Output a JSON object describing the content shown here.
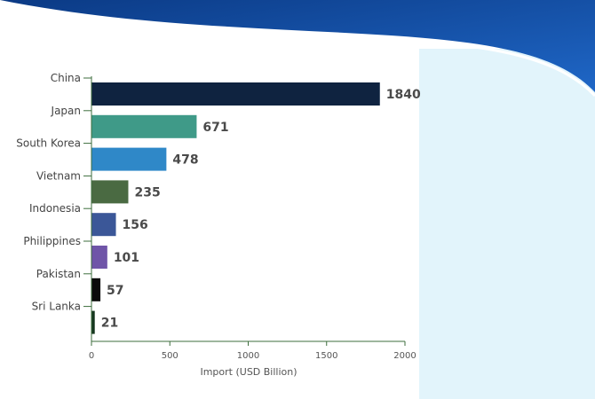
{
  "chart_data": {
    "type": "bar",
    "orientation": "horizontal",
    "categories": [
      "China",
      "Japan",
      "South Korea",
      "Vietnam",
      "Indonesia",
      "Philippines",
      "Pakistan",
      "Sri Lanka"
    ],
    "values": [
      1840,
      671,
      478,
      235,
      156,
      101,
      57,
      21
    ],
    "value_labels": [
      "1840",
      "671",
      "478",
      "235",
      "156",
      "101",
      "57",
      "21"
    ],
    "colors": [
      "#0f2340",
      "#3f9a88",
      "#2f88c8",
      "#4a6a42",
      "#3b5798",
      "#6f55a8",
      "#0a0a0a",
      "#15361f"
    ],
    "xlabel": "Import (USD Billion)",
    "ylabel": "",
    "xlim": [
      0,
      2000
    ],
    "xticks": [
      0,
      500,
      1000,
      1500,
      2000
    ],
    "xtick_labels": [
      "0",
      "500",
      "1000",
      "1500",
      "2000"
    ],
    "grid": false,
    "title": ""
  },
  "theme": {
    "header_dark": "#0b3a85",
    "header_light": "#1f67c7",
    "panel_color": "#e2f4fb",
    "axis_color": "#3d6e3d"
  }
}
